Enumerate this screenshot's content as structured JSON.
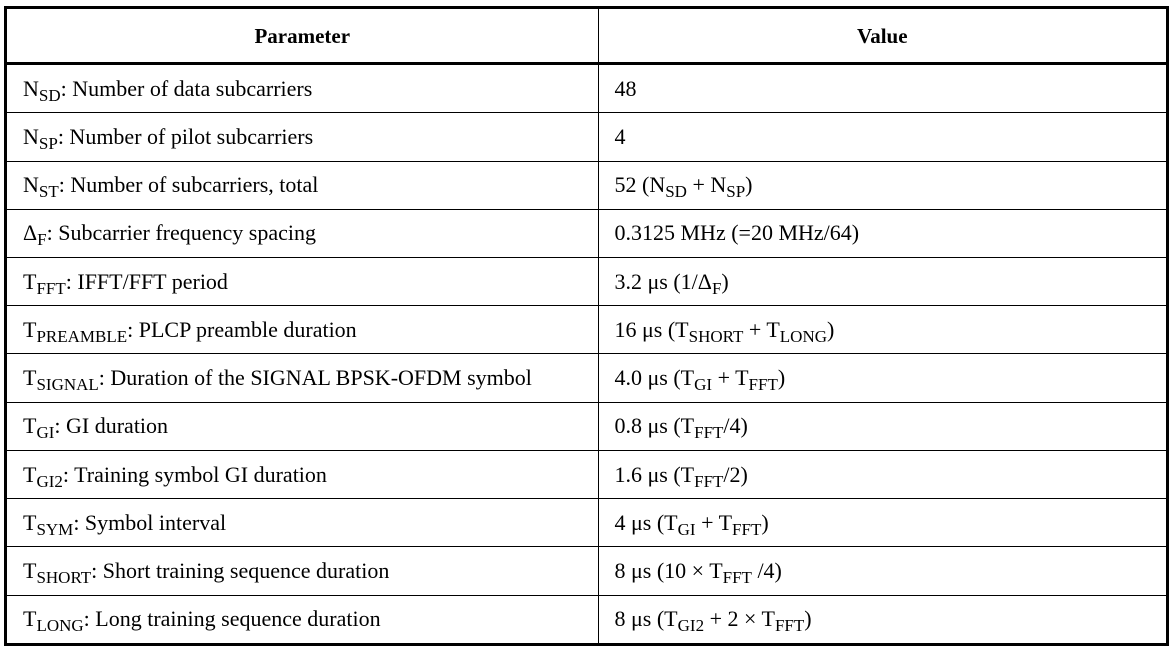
{
  "header": {
    "parameter_label": "Parameter",
    "value_label": "Value"
  },
  "rows": [
    {
      "param": [
        [
          "N",
          ""
        ],
        [
          "SD",
          "sub"
        ],
        [
          ": Number of data subcarriers",
          ""
        ]
      ],
      "value": [
        [
          "48",
          ""
        ]
      ]
    },
    {
      "param": [
        [
          "N",
          ""
        ],
        [
          "SP",
          "sub"
        ],
        [
          ": Number of pilot subcarriers",
          ""
        ]
      ],
      "value": [
        [
          "4",
          ""
        ]
      ]
    },
    {
      "param": [
        [
          "N",
          ""
        ],
        [
          "ST",
          "sub"
        ],
        [
          ": Number of subcarriers, total",
          ""
        ]
      ],
      "value": [
        [
          "52 (N",
          ""
        ],
        [
          "SD",
          "sub"
        ],
        [
          " + N",
          ""
        ],
        [
          "SP",
          "sub"
        ],
        [
          ")",
          ""
        ]
      ]
    },
    {
      "param": [
        [
          "Δ",
          ""
        ],
        [
          "F",
          "sub"
        ],
        [
          ": Subcarrier frequency spacing",
          ""
        ]
      ],
      "value": [
        [
          "0.3125 MHz (=20 MHz/64)",
          ""
        ]
      ]
    },
    {
      "param": [
        [
          "T",
          ""
        ],
        [
          "FFT",
          "sub"
        ],
        [
          ": IFFT/FFT period",
          ""
        ]
      ],
      "value": [
        [
          "3.2 μs (1/Δ",
          ""
        ],
        [
          "F",
          "sub"
        ],
        [
          ")",
          ""
        ]
      ]
    },
    {
      "param": [
        [
          "T",
          ""
        ],
        [
          "PREAMBLE",
          "sub"
        ],
        [
          ": PLCP preamble duration",
          ""
        ]
      ],
      "value": [
        [
          "16 μs (T",
          ""
        ],
        [
          "SHORT",
          "sub"
        ],
        [
          " + T",
          ""
        ],
        [
          "LONG",
          "sub"
        ],
        [
          ")",
          ""
        ]
      ]
    },
    {
      "param": [
        [
          "T",
          ""
        ],
        [
          "SIGNAL",
          "sub"
        ],
        [
          ": Duration of the SIGNAL BPSK-OFDM symbol",
          ""
        ]
      ],
      "value": [
        [
          "4.0 μs (T",
          ""
        ],
        [
          "GI",
          "sub"
        ],
        [
          " + T",
          ""
        ],
        [
          "FFT",
          "sub"
        ],
        [
          ")",
          ""
        ]
      ]
    },
    {
      "param": [
        [
          "T",
          ""
        ],
        [
          "GI",
          "sub"
        ],
        [
          ": GI duration",
          ""
        ]
      ],
      "value": [
        [
          "0.8 μs (T",
          ""
        ],
        [
          "FFT",
          "sub"
        ],
        [
          "/4)",
          ""
        ]
      ]
    },
    {
      "param": [
        [
          "T",
          ""
        ],
        [
          "GI2",
          "sub"
        ],
        [
          ": Training symbol GI duration",
          ""
        ]
      ],
      "value": [
        [
          "1.6 μs (T",
          ""
        ],
        [
          "FFT",
          "sub"
        ],
        [
          "/2)",
          ""
        ]
      ]
    },
    {
      "param": [
        [
          "T",
          ""
        ],
        [
          "SYM",
          "sub"
        ],
        [
          ": Symbol interval",
          ""
        ]
      ],
      "value": [
        [
          "4 μs (T",
          ""
        ],
        [
          "GI",
          "sub"
        ],
        [
          " + T",
          ""
        ],
        [
          "FFT",
          "sub"
        ],
        [
          ")",
          ""
        ]
      ]
    },
    {
      "param": [
        [
          "T",
          ""
        ],
        [
          "SHORT",
          "sub"
        ],
        [
          ": Short training sequence duration",
          ""
        ]
      ],
      "value": [
        [
          "8 μs (10 × T",
          ""
        ],
        [
          "FFT",
          "sub"
        ],
        [
          " /4)",
          ""
        ]
      ]
    },
    {
      "param": [
        [
          "T",
          ""
        ],
        [
          "LONG",
          "sub"
        ],
        [
          ": Long training sequence duration",
          ""
        ]
      ],
      "value": [
        [
          "8 μs (T",
          ""
        ],
        [
          "GI2",
          "sub"
        ],
        [
          " + 2 × T",
          ""
        ],
        [
          "FFT",
          "sub"
        ],
        [
          ")",
          ""
        ]
      ]
    }
  ]
}
